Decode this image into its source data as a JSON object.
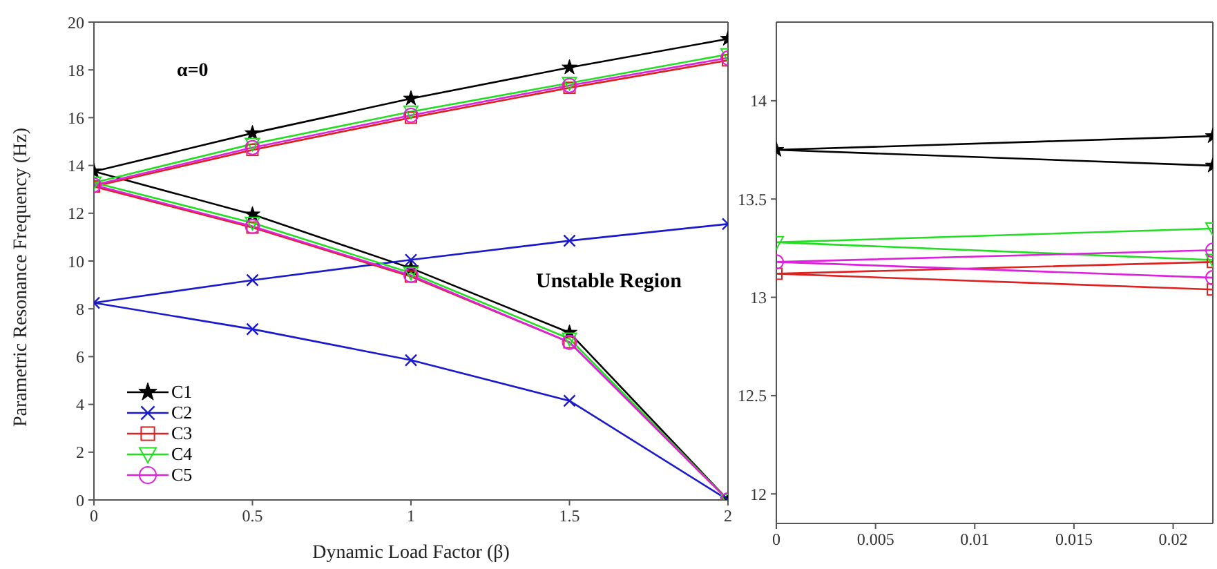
{
  "chart_data": [
    {
      "type": "line",
      "xlabel": "Dynamic Load Factor (β)",
      "ylabel": "Parametric Resonance Frequency (Hz)",
      "annotations": [
        "α=0",
        "Unstable Region"
      ],
      "xlim": [
        0,
        2
      ],
      "xticks": [
        0,
        0.5,
        1,
        1.5,
        2
      ],
      "ylim": [
        0,
        20
      ],
      "yticks": [
        0,
        2,
        4,
        6,
        8,
        10,
        12,
        14,
        16,
        18,
        20
      ],
      "grid": false,
      "legend": "bottom left",
      "series": [
        {
          "name": "C1",
          "color": "#000000",
          "marker": "star",
          "x": [
            2,
            1.5,
            1,
            0.5,
            0,
            0.5,
            1,
            1.5,
            2
          ],
          "values": [
            19.3,
            18.1,
            16.8,
            15.35,
            13.75,
            11.95,
            9.7,
            7.0,
            0
          ]
        },
        {
          "name": "C2",
          "color": "#1a1acc",
          "marker": "cross",
          "x": [
            2,
            1.5,
            1,
            0.5,
            0,
            0.5,
            1,
            1.5,
            2
          ],
          "values": [
            11.55,
            10.85,
            10.05,
            9.2,
            8.25,
            7.15,
            5.85,
            4.15,
            0
          ]
        },
        {
          "name": "C3",
          "color": "#dd2222",
          "marker": "square",
          "x": [
            2,
            1.5,
            1,
            0.5,
            0,
            0.5,
            1,
            1.5,
            2
          ],
          "values": [
            18.4,
            17.25,
            16.0,
            14.65,
            13.12,
            11.4,
            9.35,
            6.6,
            0
          ]
        },
        {
          "name": "C4",
          "color": "#22dd22",
          "marker": "triangle",
          "x": [
            2,
            1.5,
            1,
            0.5,
            0,
            0.5,
            1,
            1.5,
            2
          ],
          "values": [
            18.65,
            17.45,
            16.25,
            14.9,
            13.28,
            11.6,
            9.5,
            6.75,
            0
          ]
        },
        {
          "name": "C5",
          "color": "#dd22dd",
          "marker": "circle",
          "x": [
            2,
            1.5,
            1,
            0.5,
            0,
            0.5,
            1,
            1.5,
            2
          ],
          "values": [
            18.5,
            17.35,
            16.1,
            14.75,
            13.18,
            11.45,
            9.4,
            6.6,
            0
          ]
        }
      ]
    },
    {
      "type": "line",
      "xlim": [
        0,
        0.022
      ],
      "xticks": [
        0,
        0.005,
        0.01,
        0.015,
        0.02
      ],
      "ylim": [
        11.85,
        14.4
      ],
      "yticks": [
        12,
        12.5,
        13,
        13.5,
        14
      ],
      "grid": false,
      "series": [
        {
          "color": "#000000",
          "marker": "star",
          "x": [
            0.022,
            0,
            0.022
          ],
          "values": [
            13.82,
            13.75,
            13.67
          ]
        },
        {
          "color": "#dd2222",
          "marker": "square",
          "x": [
            0.022,
            0,
            0.022
          ],
          "values": [
            13.18,
            13.12,
            13.04
          ]
        },
        {
          "color": "#22dd22",
          "marker": "triangle",
          "x": [
            0.022,
            0,
            0.022
          ],
          "values": [
            13.35,
            13.28,
            13.19
          ]
        },
        {
          "color": "#dd22dd",
          "marker": "circle",
          "x": [
            0.022,
            0,
            0.022
          ],
          "values": [
            13.24,
            13.18,
            13.1
          ]
        }
      ]
    }
  ]
}
